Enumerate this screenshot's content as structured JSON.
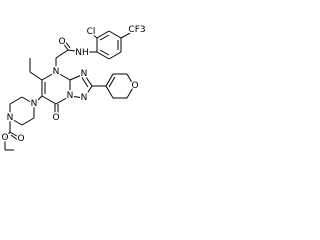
{
  "atoms": [
    "Cl",
    "CF3",
    "O",
    "NH",
    "N",
    "N",
    "N",
    "N",
    "O",
    "N",
    "N",
    "O",
    "O",
    "O"
  ]
}
